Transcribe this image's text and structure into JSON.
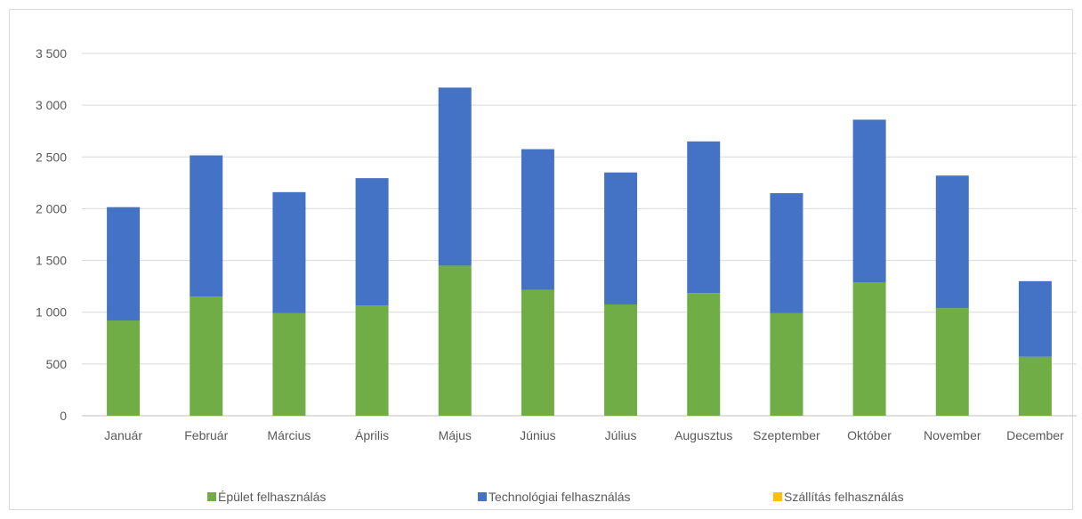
{
  "chart_data": {
    "type": "bar",
    "stacked": true,
    "categories": [
      "Január",
      "Február",
      "Március",
      "Április",
      "Május",
      "Június",
      "Július",
      "Augusztus",
      "Szeptember",
      "Október",
      "November",
      "December"
    ],
    "series": [
      {
        "name": "Épület felhasználás",
        "color": "#70ad47",
        "values": [
          920,
          1150,
          990,
          1065,
          1450,
          1215,
          1075,
          1185,
          990,
          1290,
          1040,
          570
        ]
      },
      {
        "name": "Technológiai felhasználás",
        "color": "#4472c4",
        "values": [
          1095,
          1365,
          1170,
          1230,
          1720,
          1360,
          1275,
          1465,
          1160,
          1570,
          1280,
          730
        ]
      },
      {
        "name": "Szállítás felhasználás",
        "color": "#ffc000",
        "values": [
          0,
          0,
          0,
          0,
          0,
          0,
          0,
          0,
          0,
          0,
          0,
          0
        ]
      }
    ],
    "ylim": [
      0,
      3500
    ],
    "yticks": [
      0,
      500,
      1000,
      1500,
      2000,
      2500,
      3000,
      3500
    ],
    "ytick_labels": [
      "0",
      "500",
      "1 000",
      "1 500",
      "2 000",
      "2 500",
      "3 000",
      "3 500"
    ],
    "grid": true,
    "legend_position": "bottom"
  }
}
